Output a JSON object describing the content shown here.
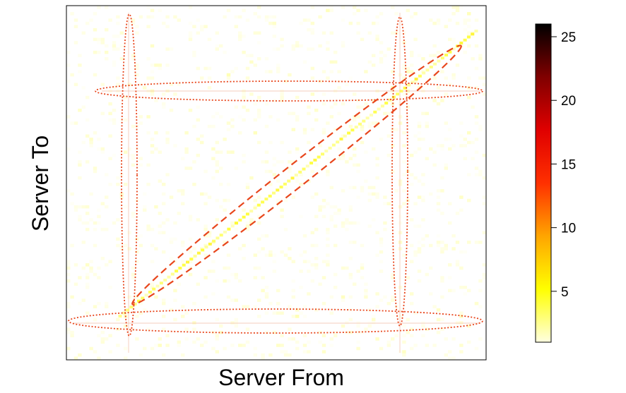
{
  "chart_data": {
    "type": "heatmap",
    "title": "",
    "xlabel": "Server From",
    "ylabel": "Server To",
    "colorbar": {
      "min": 1,
      "max": 26,
      "ticks": [
        5,
        10,
        15,
        20,
        25
      ],
      "colors": [
        "#ffffe0",
        "#ffff00",
        "#ffa500",
        "#ff3000",
        "#e00000",
        "#800000",
        "#000000"
      ]
    },
    "matrix_description": "sparse server-to-server traffic matrix, mostly low values",
    "highlight_regions": [
      {
        "kind": "diagonal-band",
        "style": "dashed",
        "color": "#e8461c"
      },
      {
        "kind": "column",
        "style": "dotted",
        "color": "#e8461c"
      },
      {
        "kind": "column",
        "style": "dotted",
        "color": "#e8461c"
      },
      {
        "kind": "row",
        "style": "dotted",
        "color": "#e8461c"
      },
      {
        "kind": "row",
        "style": "dotted",
        "color": "#e8461c"
      }
    ]
  }
}
